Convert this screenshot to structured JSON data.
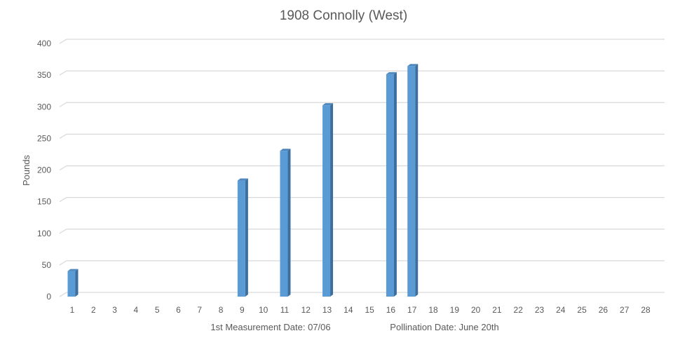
{
  "chart_data": {
    "type": "bar",
    "title": "1908 Connolly (West)",
    "ylabel": "Pounds",
    "xlabel_notes": [
      "1st Measurement Date: 07/06",
      "Pollination Date: June 20th"
    ],
    "categories": [
      "1",
      "2",
      "3",
      "4",
      "5",
      "6",
      "7",
      "8",
      "9",
      "10",
      "11",
      "12",
      "13",
      "14",
      "15",
      "16",
      "17",
      "18",
      "19",
      "20",
      "21",
      "22",
      "23",
      "24",
      "25",
      "26",
      "27",
      "28"
    ],
    "values": [
      37,
      null,
      null,
      null,
      null,
      null,
      null,
      null,
      180,
      null,
      227,
      null,
      299,
      null,
      null,
      348,
      361,
      null,
      null,
      null,
      null,
      null,
      null,
      null,
      null,
      null,
      null,
      null
    ],
    "ylim": [
      0,
      400
    ],
    "yticks": [
      0,
      50,
      100,
      150,
      200,
      250,
      300,
      350,
      400
    ],
    "grid": true,
    "bar_color": "#5b9bd5",
    "bar_side_color": "#3d6f9e"
  }
}
